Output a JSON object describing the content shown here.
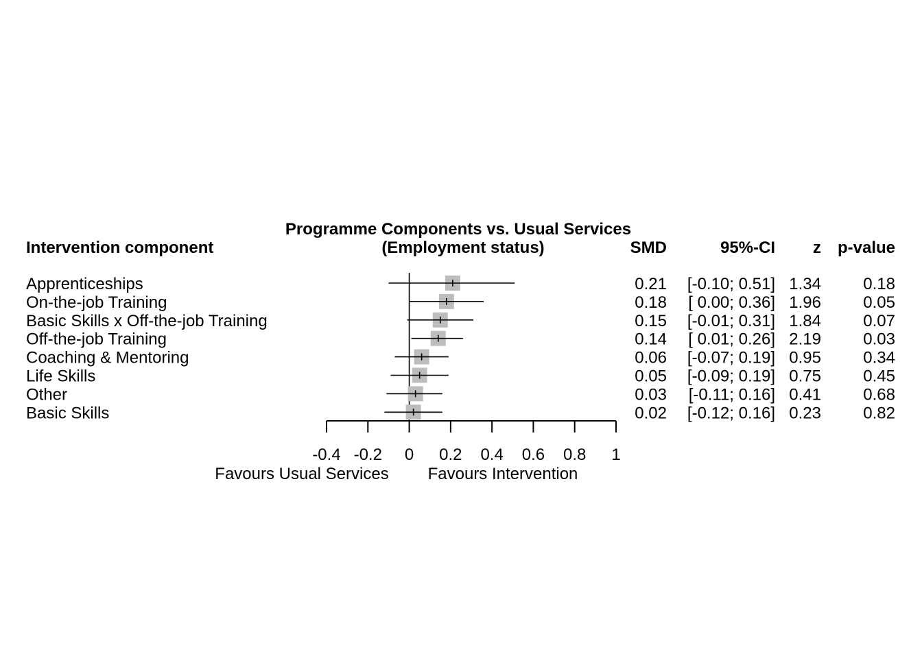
{
  "chart_data": {
    "type": "forest",
    "title_line1": "Programme Components vs. Usual Services",
    "title_line2": "(Employment status)",
    "columns": {
      "label": "Intervention component",
      "smd": "SMD",
      "ci": "95%-CI",
      "z": "z",
      "p": "p-value"
    },
    "rows": [
      {
        "label": "Apprenticeships",
        "smd": 0.21,
        "lower": -0.1,
        "upper": 0.51,
        "smd_text": "0.21",
        "ci_text": "[-0.10; 0.51]",
        "z_text": "1.34",
        "p_text": "0.18"
      },
      {
        "label": "On-the-job Training",
        "smd": 0.18,
        "lower": 0.0,
        "upper": 0.36,
        "smd_text": "0.18",
        "ci_text": "[ 0.00; 0.36]",
        "z_text": "1.96",
        "p_text": "0.05"
      },
      {
        "label": "Basic Skills x Off-the-job Training",
        "smd": 0.15,
        "lower": -0.01,
        "upper": 0.31,
        "smd_text": "0.15",
        "ci_text": "[-0.01; 0.31]",
        "z_text": "1.84",
        "p_text": "0.07"
      },
      {
        "label": "Off-the-job Training",
        "smd": 0.14,
        "lower": 0.01,
        "upper": 0.26,
        "smd_text": "0.14",
        "ci_text": "[ 0.01; 0.26]",
        "z_text": "2.19",
        "p_text": "0.03"
      },
      {
        "label": "Coaching & Mentoring",
        "smd": 0.06,
        "lower": -0.07,
        "upper": 0.19,
        "smd_text": "0.06",
        "ci_text": "[-0.07; 0.19]",
        "z_text": "0.95",
        "p_text": "0.34"
      },
      {
        "label": "Life Skills",
        "smd": 0.05,
        "lower": -0.09,
        "upper": 0.19,
        "smd_text": "0.05",
        "ci_text": "[-0.09; 0.19]",
        "z_text": "0.75",
        "p_text": "0.45"
      },
      {
        "label": "Other",
        "smd": 0.03,
        "lower": -0.11,
        "upper": 0.16,
        "smd_text": "0.03",
        "ci_text": "[-0.11; 0.16]",
        "z_text": "0.41",
        "p_text": "0.68"
      },
      {
        "label": "Basic Skills",
        "smd": 0.02,
        "lower": -0.12,
        "upper": 0.16,
        "smd_text": "0.02",
        "ci_text": "[-0.12; 0.16]",
        "z_text": "0.23",
        "p_text": "0.82"
      }
    ],
    "xlim": [
      -0.4,
      1
    ],
    "ticks": [
      -0.4,
      -0.2,
      0,
      0.2,
      0.4,
      0.6,
      0.8,
      1
    ],
    "tick_labels": [
      "-0.4",
      "-0.2",
      "0",
      "0.2",
      "0.4",
      "0.6",
      "0.8",
      "1"
    ],
    "reference_line": 0,
    "label_left": "Favours Usual Services",
    "label_right": "Favours Intervention",
    "colors": {
      "square": "#bdbdbd",
      "line": "#000000"
    }
  }
}
